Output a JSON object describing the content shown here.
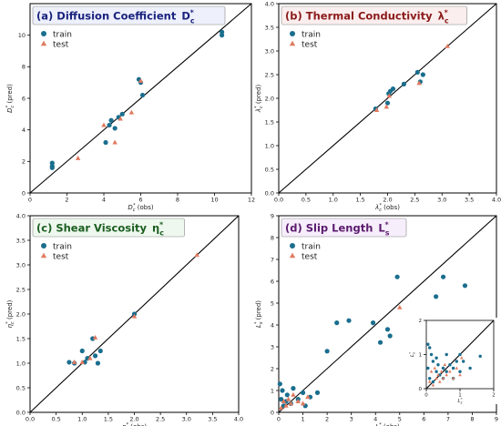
{
  "colors": {
    "train": "#1a6e8e",
    "test": "#e07a5f"
  },
  "chart_data": [
    {
      "type": "scatter",
      "title": "(a) Diffusion Coefficient",
      "title_symbol": "D",
      "title_sub": "c",
      "title_sup": "*",
      "title_color": "#1a237e",
      "title_bg": "#eef0fb",
      "xlabel": "D_c^* (obs)",
      "ylabel": "D_c^* (pred)",
      "xlim": [
        0,
        12
      ],
      "ylim": [
        0,
        12
      ],
      "xticks": [
        0,
        2,
        4,
        6,
        8,
        10,
        12
      ],
      "yticks": [
        0,
        2,
        4,
        6,
        8,
        10
      ],
      "tick_format": "int",
      "legend": "upper-left",
      "diagonal": true,
      "series": [
        {
          "name": "train",
          "marker": "circle",
          "x": [
            1.2,
            1.2,
            1.2,
            4.1,
            4.3,
            4.4,
            4.6,
            4.8,
            5.0,
            5.9,
            6.0,
            6.1,
            10.4,
            10.4
          ],
          "y": [
            1.9,
            1.7,
            1.6,
            3.2,
            4.3,
            4.6,
            4.1,
            4.8,
            5.0,
            7.2,
            7.0,
            6.2,
            10.2,
            10.0
          ]
        },
        {
          "name": "test",
          "marker": "triangle",
          "x": [
            2.6,
            4.0,
            4.6,
            4.9,
            5.5,
            6.0
          ],
          "y": [
            2.2,
            4.3,
            3.2,
            4.7,
            5.1,
            7.1
          ]
        }
      ]
    },
    {
      "type": "scatter",
      "title": "(b) Thermal Conductivity",
      "title_symbol": "λ",
      "title_sub": "c",
      "title_sup": "*",
      "title_color": "#8b1a1a",
      "title_bg": "#fbeeee",
      "xlabel": "λ_c^* (obs)",
      "ylabel": "λ_c^* (pred)",
      "xlim": [
        0,
        4
      ],
      "ylim": [
        0,
        4
      ],
      "xticks": [
        0.0,
        0.5,
        1.0,
        1.5,
        2.0,
        2.5,
        3.0,
        3.5,
        4.0
      ],
      "yticks": [
        0.0,
        0.5,
        1.0,
        1.5,
        2.0,
        2.5,
        3.0,
        3.5,
        4.0
      ],
      "tick_format": "1dp",
      "legend": "upper-left",
      "diagonal": true,
      "series": [
        {
          "name": "train",
          "marker": "circle",
          "x": [
            1.78,
            2.0,
            2.02,
            2.05,
            2.1,
            2.3,
            2.55,
            2.6,
            2.65
          ],
          "y": [
            1.78,
            1.9,
            2.1,
            2.15,
            2.2,
            2.3,
            2.55,
            2.35,
            2.5
          ]
        },
        {
          "name": "test",
          "marker": "triangle",
          "x": [
            1.8,
            1.98,
            2.03,
            2.58,
            3.1
          ],
          "y": [
            1.75,
            1.82,
            2.05,
            2.32,
            3.1
          ]
        }
      ]
    },
    {
      "type": "scatter",
      "title": "(c) Shear Viscosity",
      "title_symbol": "η",
      "title_sub": "c",
      "title_sup": "*",
      "title_color": "#1b5e20",
      "title_bg": "#eef8ee",
      "xlabel": "η_c^* (obs)",
      "ylabel": "η_c^* (pred)",
      "xlim": [
        0,
        4
      ],
      "ylim": [
        0,
        4
      ],
      "xticks": [
        0.0,
        0.5,
        1.0,
        1.5,
        2.0,
        2.5,
        3.0,
        3.5,
        4.0
      ],
      "yticks": [
        0.0,
        0.5,
        1.0,
        1.5,
        2.0,
        2.5,
        3.0,
        3.5,
        4.0
      ],
      "tick_format": "1dp",
      "legend": "upper-left",
      "diagonal": true,
      "series": [
        {
          "name": "train",
          "marker": "circle",
          "x": [
            0.75,
            0.85,
            1.0,
            1.05,
            1.1,
            1.2,
            1.25,
            1.3,
            1.35,
            2.0
          ],
          "y": [
            1.02,
            1.0,
            1.25,
            1.02,
            1.1,
            1.5,
            1.15,
            1.0,
            1.25,
            2.0
          ]
        },
        {
          "name": "test",
          "marker": "triangle",
          "x": [
            0.85,
            1.0,
            1.15,
            1.25,
            2.0,
            3.2
          ],
          "y": [
            1.02,
            1.02,
            1.1,
            1.52,
            1.95,
            3.2
          ]
        }
      ]
    },
    {
      "type": "scatter",
      "title": "(d) Slip Length",
      "title_symbol": "L",
      "title_sub": "s",
      "title_sup": "*",
      "title_color": "#5b1a6e",
      "title_bg": "#f6eefb",
      "xlabel": "L_s^* (obs)",
      "ylabel": "L_s^* (pred)",
      "xlim": [
        0,
        9
      ],
      "ylim": [
        0,
        9
      ],
      "xticks": [
        0,
        1,
        2,
        3,
        4,
        5,
        6,
        7,
        8,
        9
      ],
      "yticks": [
        0,
        1,
        2,
        3,
        4,
        5,
        6,
        7,
        8,
        9
      ],
      "tick_format": "int",
      "legend": "upper-left",
      "diagonal": true,
      "series": [
        {
          "name": "train",
          "marker": "circle",
          "x": [
            0.05,
            0.1,
            0.15,
            0.2,
            0.3,
            0.35,
            0.5,
            0.6,
            0.8,
            1.0,
            1.1,
            1.3,
            1.6,
            2.0,
            2.4,
            2.9,
            3.9,
            4.2,
            4.5,
            4.6,
            4.9,
            6.5,
            6.8,
            7.7
          ],
          "y": [
            1.3,
            0.6,
            1.0,
            0.3,
            0.5,
            0.8,
            0.4,
            1.1,
            0.6,
            0.9,
            0.3,
            0.7,
            0.9,
            2.8,
            4.1,
            4.2,
            4.1,
            3.2,
            3.8,
            3.5,
            6.2,
            5.3,
            6.2,
            5.8
          ]
        },
        {
          "name": "test",
          "marker": "triangle",
          "x": [
            0.1,
            0.2,
            0.3,
            0.4,
            0.5,
            0.6,
            0.8,
            1.0,
            1.2,
            5.0
          ],
          "y": [
            0.2,
            0.5,
            0.3,
            0.6,
            0.4,
            0.8,
            0.5,
            0.4,
            0.7,
            4.8
          ]
        }
      ],
      "inset": {
        "xlim": [
          0,
          2
        ],
        "ylim": [
          0,
          2
        ],
        "xticks": [
          0,
          1,
          2
        ],
        "yticks": [
          0,
          1,
          2
        ],
        "xlabel": "L_s^*",
        "ylabel": "L_s^*",
        "series": [
          {
            "name": "train",
            "marker": "circle",
            "x": [
              0.05,
              0.05,
              0.1,
              0.1,
              0.15,
              0.2,
              0.2,
              0.3,
              0.3,
              0.35,
              0.4,
              0.5,
              0.5,
              0.6,
              0.6,
              0.7,
              0.8,
              0.8,
              0.9,
              1.0,
              1.0,
              1.1,
              1.3,
              1.6
            ],
            "y": [
              1.3,
              0.6,
              1.2,
              0.3,
              1.0,
              0.8,
              0.2,
              0.5,
              0.9,
              0.7,
              0.4,
              0.6,
              0.3,
              0.5,
              1.0,
              0.7,
              0.6,
              0.3,
              0.8,
              1.0,
              0.5,
              0.8,
              0.6,
              0.95
            ]
          },
          {
            "name": "test",
            "marker": "triangle",
            "x": [
              0.1,
              0.15,
              0.2,
              0.25,
              0.3,
              0.35,
              0.4,
              0.45,
              0.5,
              0.55,
              0.6,
              0.7,
              0.8,
              0.9,
              1.0,
              1.05
            ],
            "y": [
              0.2,
              0.5,
              0.1,
              0.6,
              0.3,
              0.4,
              0.2,
              0.5,
              0.3,
              0.7,
              0.4,
              0.5,
              0.3,
              0.6,
              0.4,
              0.9
            ]
          }
        ]
      }
    }
  ]
}
